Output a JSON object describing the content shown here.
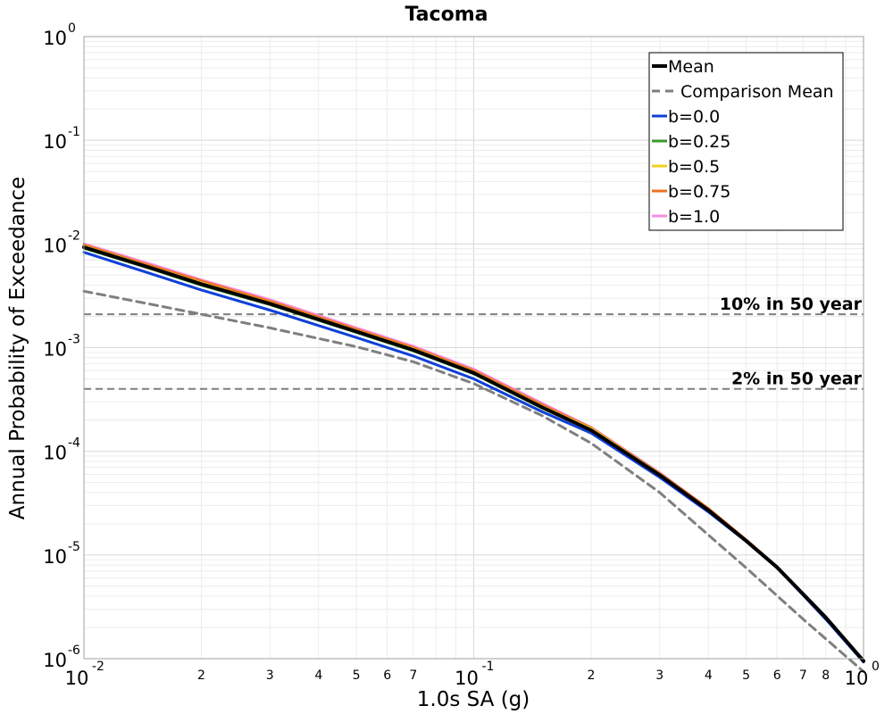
{
  "chart_data": {
    "type": "line",
    "title": "Tacoma",
    "xlabel": "1.0s SA (g)",
    "ylabel": "Annual Probability of Exceedance",
    "xscale": "log",
    "yscale": "log",
    "xlim": [
      0.01,
      1.0
    ],
    "ylim": [
      1e-06,
      1.0
    ],
    "grid": true,
    "legend_position": "top-right",
    "x_major_ticks": [
      {
        "value": 0.01,
        "base": "10",
        "exp": "-2"
      },
      {
        "value": 0.1,
        "base": "10",
        "exp": "-1"
      },
      {
        "value": 1.0,
        "base": "10",
        "exp": "0"
      }
    ],
    "x_minor_ticks": [
      {
        "value": 0.02,
        "label": "2"
      },
      {
        "value": 0.03,
        "label": "3"
      },
      {
        "value": 0.04,
        "label": "4"
      },
      {
        "value": 0.05,
        "label": "5"
      },
      {
        "value": 0.06,
        "label": "6"
      },
      {
        "value": 0.07,
        "label": "7"
      },
      {
        "value": 0.2,
        "label": "2"
      },
      {
        "value": 0.3,
        "label": "3"
      },
      {
        "value": 0.4,
        "label": "4"
      },
      {
        "value": 0.5,
        "label": "5"
      },
      {
        "value": 0.6,
        "label": "6"
      },
      {
        "value": 0.7,
        "label": "7"
      },
      {
        "value": 0.8,
        "label": "8"
      }
    ],
    "y_major_ticks": [
      {
        "value": 1.0,
        "base": "10",
        "exp": "0"
      },
      {
        "value": 0.1,
        "base": "10",
        "exp": "-1"
      },
      {
        "value": 0.01,
        "base": "10",
        "exp": "-2"
      },
      {
        "value": 0.001,
        "base": "10",
        "exp": "-3"
      },
      {
        "value": 0.0001,
        "base": "10",
        "exp": "-4"
      },
      {
        "value": 1e-05,
        "base": "10",
        "exp": "-5"
      },
      {
        "value": 1e-06,
        "base": "10",
        "exp": "-6"
      }
    ],
    "hlines": [
      {
        "value": 0.0021,
        "label": "10% in 50 year",
        "color": "#7f7f7f"
      },
      {
        "value": 0.0004,
        "label": "2% in 50 year",
        "color": "#7f7f7f"
      }
    ],
    "series": [
      {
        "name": "Comparison Mean",
        "color": "#7f7f7f",
        "dash": true,
        "x": [
          0.01,
          0.015,
          0.02,
          0.03,
          0.05,
          0.07,
          0.1,
          0.15,
          0.2,
          0.3,
          0.5,
          0.7,
          1.0
        ],
        "y": [
          0.0035,
          0.0026,
          0.0021,
          0.00155,
          0.00102,
          0.00073,
          0.00045,
          0.00022,
          0.00012,
          4e-05,
          7.5e-06,
          2.4e-06,
          7.5e-07
        ]
      },
      {
        "name": "b=1.0",
        "color": "#f48fe0",
        "x": [
          0.01,
          0.015,
          0.02,
          0.03,
          0.05,
          0.07,
          0.1,
          0.15,
          0.2,
          0.3,
          0.4,
          0.5,
          0.6,
          0.7,
          0.8,
          1.0
        ],
        "y": [
          0.01,
          0.0063,
          0.0045,
          0.0029,
          0.00155,
          0.00103,
          0.00062,
          0.00029,
          0.00017,
          6.2e-05,
          2.8e-05,
          1.4e-05,
          7.7e-06,
          4.2e-06,
          2.5e-06,
          9.5e-07
        ]
      },
      {
        "name": "b=0.75",
        "color": "#f07020",
        "x": [
          0.01,
          0.015,
          0.02,
          0.03,
          0.05,
          0.07,
          0.1,
          0.15,
          0.2,
          0.3,
          0.4,
          0.5,
          0.6,
          0.7,
          0.8,
          1.0
        ],
        "y": [
          0.0098,
          0.0061,
          0.0044,
          0.0028,
          0.0015,
          0.001,
          0.0006,
          0.00028,
          0.000168,
          6.1e-05,
          2.8e-05,
          1.4e-05,
          7.7e-06,
          4.2e-06,
          2.5e-06,
          9.5e-07
        ]
      },
      {
        "name": "b=0.5",
        "color": "#f0d020",
        "x": [
          0.01,
          0.015,
          0.02,
          0.03,
          0.05,
          0.07,
          0.1,
          0.15,
          0.2,
          0.3,
          0.4,
          0.5,
          0.6,
          0.7,
          0.8,
          1.0
        ],
        "y": [
          0.0095,
          0.0059,
          0.0042,
          0.0027,
          0.00145,
          0.00097,
          0.00058,
          0.00027,
          0.000165,
          6e-05,
          2.7e-05,
          1.38e-05,
          7.6e-06,
          4.2e-06,
          2.5e-06,
          9.5e-07
        ]
      },
      {
        "name": "b=0.25",
        "color": "#3a9a2a",
        "x": [
          0.01,
          0.015,
          0.02,
          0.03,
          0.05,
          0.07,
          0.1,
          0.15,
          0.2,
          0.3,
          0.4,
          0.5,
          0.6,
          0.7,
          0.8,
          1.0
        ],
        "y": [
          0.0091,
          0.0057,
          0.004,
          0.0026,
          0.0014,
          0.00093,
          0.00056,
          0.00026,
          0.00016,
          5.9e-05,
          2.7e-05,
          1.37e-05,
          7.6e-06,
          4.2e-06,
          2.5e-06,
          9.5e-07
        ]
      },
      {
        "name": "b=0.0",
        "color": "#1040d8",
        "x": [
          0.01,
          0.015,
          0.02,
          0.03,
          0.05,
          0.07,
          0.1,
          0.15,
          0.2,
          0.3,
          0.4,
          0.5,
          0.6,
          0.7,
          0.8,
          1.0
        ],
        "y": [
          0.0083,
          0.0051,
          0.0036,
          0.0023,
          0.00125,
          0.00083,
          0.0005,
          0.00024,
          0.00015,
          5.6e-05,
          2.6e-05,
          1.35e-05,
          7.5e-06,
          4.1e-06,
          2.4e-06,
          9.3e-07
        ]
      },
      {
        "name": "Mean",
        "color": "#000000",
        "width": 4,
        "x": [
          0.01,
          0.015,
          0.02,
          0.03,
          0.05,
          0.07,
          0.1,
          0.15,
          0.2,
          0.3,
          0.4,
          0.5,
          0.6,
          0.7,
          0.8,
          1.0
        ],
        "y": [
          0.0093,
          0.0058,
          0.0041,
          0.00265,
          0.00143,
          0.00095,
          0.00057,
          0.000265,
          0.00016,
          5.9e-05,
          2.7e-05,
          1.37e-05,
          7.6e-06,
          4.2e-06,
          2.5e-06,
          9.5e-07
        ]
      }
    ],
    "legend": [
      {
        "label": "Mean",
        "color": "#000000",
        "dash": false,
        "width": 4
      },
      {
        "label": "Comparison Mean",
        "color": "#7f7f7f",
        "dash": true,
        "width": 3
      },
      {
        "label": "b=0.0",
        "color": "#1040d8",
        "dash": false,
        "width": 3
      },
      {
        "label": "b=0.25",
        "color": "#3a9a2a",
        "dash": false,
        "width": 3
      },
      {
        "label": "b=0.5",
        "color": "#f0d020",
        "dash": false,
        "width": 3
      },
      {
        "label": "b=0.75",
        "color": "#f07020",
        "dash": false,
        "width": 3
      },
      {
        "label": "b=1.0",
        "color": "#f48fe0",
        "dash": false,
        "width": 3
      }
    ]
  }
}
